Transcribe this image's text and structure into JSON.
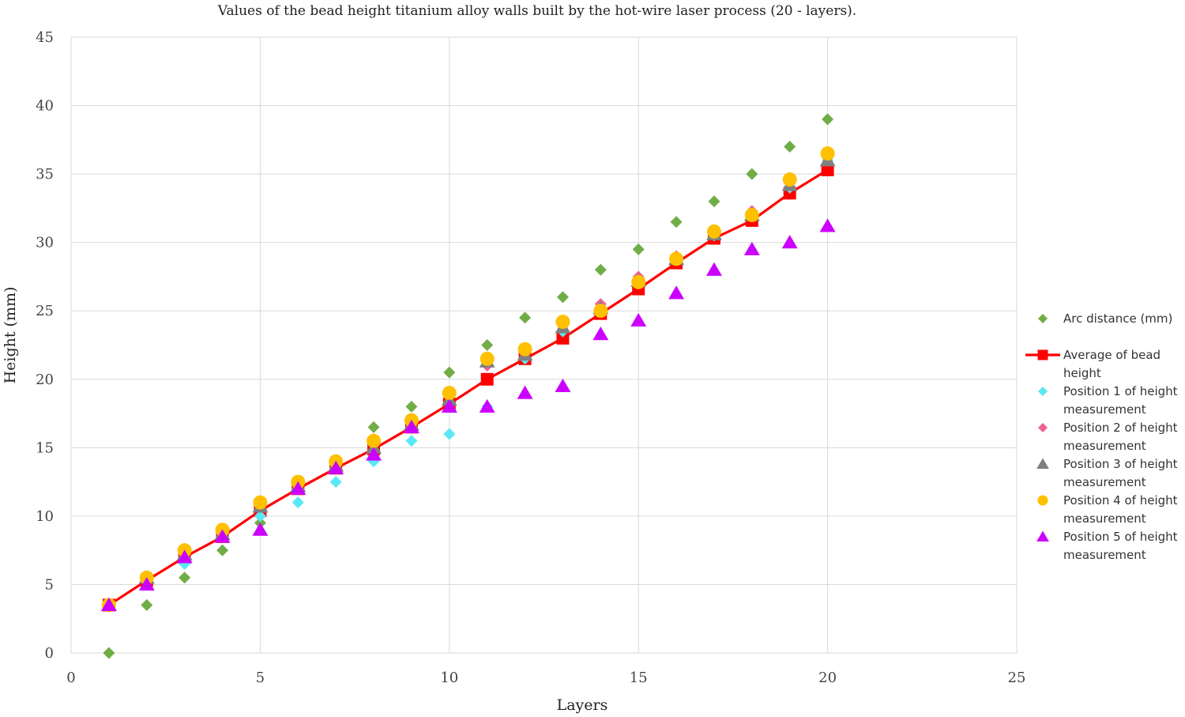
{
  "chart_data": {
    "type": "scatter",
    "title": "Values of the bead height titanium alloy walls built by the hot-wire laser process (20 - layers).",
    "xlabel": "Layers",
    "ylabel": "Height (mm)",
    "xlim": [
      0,
      25
    ],
    "ylim": [
      0,
      45
    ],
    "xticks": [
      "0",
      "5",
      "10",
      "15",
      "20",
      "25"
    ],
    "yticks": [
      "0",
      "5",
      "10",
      "15",
      "20",
      "25",
      "30",
      "35",
      "40",
      "45"
    ],
    "grid": true,
    "legend": "right",
    "x": [
      1,
      2,
      3,
      4,
      5,
      6,
      7,
      8,
      9,
      10,
      11,
      12,
      13,
      14,
      15,
      16,
      17,
      18,
      19,
      20
    ],
    "series": [
      {
        "name": "Arc distance (mm)",
        "marker": "diamond",
        "color": "#70ad47",
        "values": [
          0,
          3.5,
          5.5,
          7.5,
          9.5,
          12,
          13.5,
          16.5,
          18,
          20.5,
          22.5,
          24.5,
          26,
          28,
          29.5,
          31.5,
          33,
          35,
          37,
          39
        ]
      },
      {
        "name": "Average of bead height",
        "marker": "square",
        "line": true,
        "color": "#ff0000",
        "values": [
          3.5,
          5.3,
          7,
          8.5,
          10.4,
          12,
          13.5,
          14.9,
          16.5,
          18.2,
          20,
          21.5,
          23,
          24.8,
          26.6,
          28.5,
          30.3,
          31.6,
          33.6,
          35.3
        ]
      },
      {
        "name": "Position 1 of height measurement",
        "marker": "diamond",
        "color": "#5be8f5",
        "values": [
          3.5,
          5.5,
          6.5,
          8.5,
          10,
          11,
          12.5,
          14,
          15.5,
          16,
          18,
          21.5,
          23.5,
          25,
          27,
          28.8,
          30.5,
          32,
          34,
          36
        ]
      },
      {
        "name": "Position 2 of height measurement",
        "marker": "diamond",
        "color": "#f06292",
        "values": [
          3.5,
          5.5,
          7.3,
          8.8,
          10.8,
          12.3,
          13.8,
          15.2,
          16.8,
          18.8,
          21,
          22,
          24,
          25.5,
          27.5,
          29,
          30.7,
          32.3,
          34.5,
          36.2
        ]
      },
      {
        "name": "Position 3 of height measurement",
        "marker": "triangle",
        "color": "#808080",
        "values": [
          3.5,
          5.5,
          7.2,
          8.7,
          10.7,
          12.2,
          13.7,
          15,
          16.7,
          18.5,
          21.3,
          21.8,
          23.8,
          25.2,
          27.2,
          28.8,
          30.6,
          32,
          34.2,
          36
        ]
      },
      {
        "name": "Position 4 of height measurement",
        "marker": "circle",
        "color": "#ffc000",
        "values": [
          3.5,
          5.5,
          7.5,
          9,
          11,
          12.5,
          14,
          15.5,
          17,
          19,
          21.5,
          22.2,
          24.2,
          25,
          27.1,
          28.8,
          30.8,
          32,
          34.6,
          36.5
        ]
      },
      {
        "name": "Position 5 of height measurement",
        "marker": "triangle",
        "color": "#cc00ff",
        "values": [
          3.5,
          5,
          7,
          8.5,
          9,
          12,
          13.5,
          14.5,
          16.5,
          18,
          18,
          19,
          19.5,
          23.3,
          24.3,
          26.3,
          28,
          29.5,
          30,
          31.2
        ]
      }
    ]
  }
}
